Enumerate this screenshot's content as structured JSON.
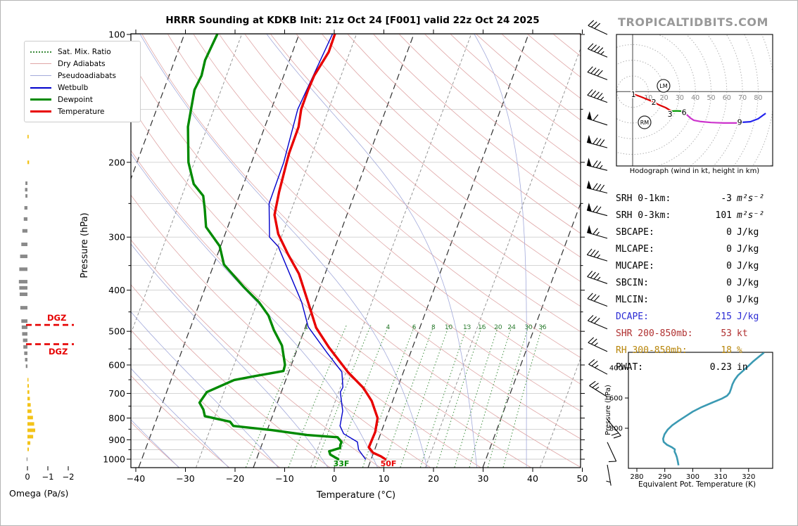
{
  "chart_data": {
    "type": "skewt-sounding",
    "title": "HRRR Sounding at KDKB Init: 21z Oct 24 [F001] valid 22z Oct 24 2025",
    "watermark": "TROPICALTIDBITS.COM",
    "legend": {
      "items": [
        {
          "label": "Sat. Mix. Ratio",
          "style": "mixratio"
        },
        {
          "label": "Dry Adiabats",
          "style": "dryadiabat"
        },
        {
          "label": "Pseudoadiabats",
          "style": "pseudoadiabat"
        },
        {
          "label": "Wetbulb",
          "style": "wetbulb"
        },
        {
          "label": "Dewpoint",
          "style": "dewpoint"
        },
        {
          "label": "Temperature",
          "style": "temperature"
        }
      ]
    },
    "skewt": {
      "xlabel": "Temperature (°C)",
      "ylabel": "Pressure (hPa)",
      "x_ticks": [
        -40,
        -30,
        -20,
        -10,
        0,
        10,
        20,
        30,
        40,
        50
      ],
      "p_ticks": [
        100,
        200,
        300,
        400,
        500,
        600,
        700,
        800,
        900,
        1000
      ],
      "p_range": [
        100,
        1047
      ],
      "dgz": {
        "label": "DGZ",
        "top_p": 483,
        "bottom_p": 536
      },
      "surface_labels": [
        {
          "text": "33F",
          "color": "#008a00"
        },
        {
          "text": "50F",
          "color": "#e80000"
        }
      ],
      "mixratio_lines": [
        1,
        2,
        3,
        4,
        6,
        8,
        10,
        13,
        16,
        20,
        24,
        30,
        36
      ],
      "mixratio_labels": [
        1,
        4,
        6,
        8,
        10,
        13,
        16,
        20,
        24,
        30,
        36
      ],
      "temperature": [
        [
          100,
          -63.3
        ],
        [
          110,
          -61.9
        ],
        [
          125,
          -61.3
        ],
        [
          135,
          -60.4
        ],
        [
          150,
          -58.9
        ],
        [
          165,
          -56.8
        ],
        [
          190,
          -54.8
        ],
        [
          200,
          -53.9
        ],
        [
          235,
          -51.0
        ],
        [
          266,
          -48.5
        ],
        [
          295,
          -44.9
        ],
        [
          330,
          -39.8
        ],
        [
          366,
          -34.8
        ],
        [
          427,
          -28.7
        ],
        [
          490,
          -23.3
        ],
        [
          545,
          -17.8
        ],
        [
          623,
          -10.3
        ],
        [
          677,
          -5.0
        ],
        [
          695,
          -3.6
        ],
        [
          730,
          -1.1
        ],
        [
          800,
          2.6
        ],
        [
          863,
          4.2
        ],
        [
          900,
          4.7
        ],
        [
          938,
          5.2
        ],
        [
          965,
          6.8
        ],
        [
          985,
          9.0
        ],
        [
          1000,
          10.3
        ]
      ],
      "dewpoint": [
        [
          100,
          -87
        ],
        [
          115,
          -85.6
        ],
        [
          125,
          -84
        ],
        [
          135,
          -83.3
        ],
        [
          150,
          -81.1
        ],
        [
          165,
          -79.1
        ],
        [
          200,
          -73.7
        ],
        [
          225,
          -69.4
        ],
        [
          240,
          -65.7
        ],
        [
          258,
          -63.4
        ],
        [
          284,
          -60.5
        ],
        [
          315,
          -54.9
        ],
        [
          348,
          -51.3
        ],
        [
          394,
          -43.8
        ],
        [
          427,
          -38.6
        ],
        [
          459,
          -34.7
        ],
        [
          497,
          -31.4
        ],
        [
          540,
          -27.5
        ],
        [
          600,
          -24.0
        ],
        [
          620,
          -23.4
        ],
        [
          637,
          -28.3
        ],
        [
          651,
          -32.0
        ],
        [
          695,
          -35.7
        ],
        [
          736,
          -35.6
        ],
        [
          764,
          -33.8
        ],
        [
          792,
          -32.5
        ],
        [
          816,
          -26.6
        ],
        [
          835,
          -25.3
        ],
        [
          854,
          -17.0
        ],
        [
          877,
          -9.1
        ],
        [
          888,
          -2.6
        ],
        [
          911,
          -1.1
        ],
        [
          926,
          -0.9
        ],
        [
          941,
          -0.5
        ],
        [
          958,
          -2.2
        ],
        [
          975,
          -1.5
        ],
        [
          1000,
          0.8
        ]
      ],
      "wetbulb": [
        [
          100,
          -63.8
        ],
        [
          150,
          -59.6
        ],
        [
          200,
          -54.5
        ],
        [
          250,
          -51.3
        ],
        [
          300,
          -46.2
        ],
        [
          316,
          -43.0
        ],
        [
          370,
          -36.2
        ],
        [
          427,
          -30.0
        ],
        [
          488,
          -25.0
        ],
        [
          560,
          -17.5
        ],
        [
          623,
          -11.5
        ],
        [
          677,
          -9.0
        ],
        [
          695,
          -8.8
        ],
        [
          770,
          -5.5
        ],
        [
          835,
          -3.8
        ],
        [
          871,
          -1.9
        ],
        [
          911,
          2.1
        ],
        [
          950,
          3.5
        ],
        [
          1000,
          6.3
        ]
      ]
    },
    "omega": {
      "xlabel": "Omega (Pa/s)",
      "ticks": [
        0,
        -1,
        -2
      ],
      "bars": [
        [
          174,
          -0.06
        ],
        [
          200,
          -0.08
        ],
        [
          224,
          0.1
        ],
        [
          232,
          0.12
        ],
        [
          240,
          0.1
        ],
        [
          256,
          0.15
        ],
        [
          272,
          0.18
        ],
        [
          290,
          0.25
        ],
        [
          312,
          0.3
        ],
        [
          333,
          0.36
        ],
        [
          357,
          0.4
        ],
        [
          382,
          0.42
        ],
        [
          395,
          0.4
        ],
        [
          409,
          0.38
        ],
        [
          440,
          0.35
        ],
        [
          473,
          0.3
        ],
        [
          489,
          0.28
        ],
        [
          507,
          0.26
        ],
        [
          525,
          0.22
        ],
        [
          544,
          0.2
        ],
        [
          563,
          0.16
        ],
        [
          583,
          0.12
        ],
        [
          604,
          0.08
        ],
        [
          650,
          -0.05
        ],
        [
          672,
          -0.07
        ],
        [
          695,
          -0.09
        ],
        [
          720,
          -0.12
        ],
        [
          745,
          -0.16
        ],
        [
          771,
          -0.2
        ],
        [
          798,
          -0.27
        ],
        [
          826,
          -0.33
        ],
        [
          855,
          -0.38
        ],
        [
          885,
          -0.28
        ],
        [
          916,
          -0.14
        ],
        [
          948,
          -0.07
        ],
        [
          1000,
          0.04
        ]
      ]
    },
    "wind_barbs": {
      "speeds_kt": [
        30,
        45,
        40,
        45,
        60,
        80,
        75,
        80,
        70,
        65,
        35,
        35,
        30,
        30,
        25,
        25,
        25,
        20,
        10,
        5
      ],
      "dirs_deg": [
        295,
        293,
        291,
        290,
        288,
        285,
        284,
        284,
        285,
        286,
        287,
        289,
        291,
        293,
        295,
        298,
        302,
        140,
        155,
        170
      ]
    },
    "hodograph": {
      "caption": "Hodograph (wind in kt, height in km)",
      "ring_step_kt": 10,
      "ring_labels": [
        10,
        20,
        30,
        40,
        50,
        60,
        70,
        80
      ],
      "segments": {
        "red": [
          [
            0.9,
            -1.7
          ],
          [
            5,
            -3.2
          ],
          [
            9,
            -4.8
          ],
          [
            13,
            -6.5
          ],
          [
            17,
            -8.5
          ],
          [
            21,
            -10.2
          ],
          [
            24.7,
            -12.4
          ]
        ],
        "green": [
          [
            24.7,
            -12.4
          ],
          [
            28,
            -12.3
          ],
          [
            30.9,
            -12.4
          ],
          [
            32.3,
            -12.9
          ]
        ],
        "magenta": [
          [
            32.3,
            -12.9
          ],
          [
            34.5,
            -14.7
          ],
          [
            37,
            -17
          ],
          [
            39,
            -18.3
          ],
          [
            43.5,
            -19.1
          ],
          [
            50,
            -19.7
          ],
          [
            58,
            -20
          ],
          [
            65.9,
            -20
          ],
          [
            69,
            -19.6
          ]
        ],
        "blue": [
          [
            69,
            -19.6
          ],
          [
            75,
            -19.2
          ],
          [
            80,
            -17.3
          ],
          [
            84.8,
            -13.8
          ]
        ]
      },
      "height_labels": [
        {
          "text": "1",
          "u": 0.5,
          "v": -1.7
        },
        {
          "text": "2",
          "u": 13.5,
          "v": -6.6
        },
        {
          "text": "3",
          "u": 23.8,
          "v": -14.3
        },
        {
          "text": "6",
          "u": 32.8,
          "v": -13.0
        },
        {
          "text": "9",
          "u": 68.2,
          "v": -19.3
        }
      ],
      "storm_motion": [
        {
          "text": "LM",
          "u": 19.7,
          "v": 3.7
        },
        {
          "text": "RM",
          "u": 7.6,
          "v": -19.6
        }
      ]
    },
    "stats": {
      "rows": [
        {
          "label": "SRH 0-1km:",
          "value": "-3",
          "unit": "m²s⁻²",
          "color": "#000000"
        },
        {
          "label": "SRH 0-3km:",
          "value": "101",
          "unit": "m²s⁻²",
          "color": "#000000"
        },
        {
          "label": "SBCAPE:",
          "value": "0",
          "unit": "J/kg",
          "color": "#000000"
        },
        {
          "label": "MLCAPE:",
          "value": "0",
          "unit": "J/kg",
          "color": "#000000"
        },
        {
          "label": "MUCAPE:",
          "value": "0",
          "unit": "J/kg",
          "color": "#000000"
        },
        {
          "label": "SBCIN:",
          "value": "0",
          "unit": "J/kg",
          "color": "#000000"
        },
        {
          "label": "MLCIN:",
          "value": "0",
          "unit": "J/kg",
          "color": "#000000"
        },
        {
          "label": "DCAPE:",
          "value": "215",
          "unit": "J/kg",
          "color": "#2a2ad4"
        },
        {
          "label": "SHR 200-850mb:",
          "value": "53",
          "unit": "kt",
          "color": "#b03030"
        },
        {
          "label": "RH 300-850mb:",
          "value": "18",
          "unit": "%",
          "color": "#b8860b"
        },
        {
          "label": "PWAT:",
          "value": "0.23",
          "unit": "in",
          "color": "#000000"
        }
      ]
    },
    "ept": {
      "xlabel": "Equivalent Pot. Temperature (K)",
      "ylabel": "Pressure (hPa)",
      "x_ticks": [
        280,
        290,
        300,
        310,
        320
      ],
      "y_ticks": [
        400,
        600,
        800
      ],
      "trace": [
        [
          300,
          325.5
        ],
        [
          330,
          323.5
        ],
        [
          360,
          321.5
        ],
        [
          390,
          319.8
        ],
        [
          420,
          318.0
        ],
        [
          450,
          316.2
        ],
        [
          480,
          315.0
        ],
        [
          510,
          314.2
        ],
        [
          540,
          313.7
        ],
        [
          565,
          313.2
        ],
        [
          585,
          312.3
        ],
        [
          605,
          310.3
        ],
        [
          630,
          307.0
        ],
        [
          660,
          303.2
        ],
        [
          690,
          300.0
        ],
        [
          720,
          297.5
        ],
        [
          750,
          295.0
        ],
        [
          780,
          292.7
        ],
        [
          810,
          291.0
        ],
        [
          840,
          289.9
        ],
        [
          870,
          289.4
        ],
        [
          890,
          289.6
        ],
        [
          910,
          290.8
        ],
        [
          925,
          292.5
        ],
        [
          940,
          293.6
        ],
        [
          955,
          293.5
        ],
        [
          970,
          293.9
        ],
        [
          990,
          294.3
        ],
        [
          1015,
          294.6
        ],
        [
          1045,
          294.9
        ]
      ]
    },
    "colors": {
      "temperature": "#e80000",
      "dewpoint": "#008a00",
      "wetbulb": "#0000cc",
      "dry_adiabat": "#dfa6a6",
      "pseudoadiabat": "#a3aadb",
      "mix_ratio": "#3c8c3c",
      "grid": "#cfcfcf",
      "dash_light": "#8a8a8a",
      "dash_dark": "#2f2f2f",
      "omega_down": "#8a8a8a",
      "omega_up": "#f3c318",
      "dgz": "#e60000",
      "ept_trace": "#3b9ab3",
      "hodo_red": "#dd0000",
      "hodo_green": "#009900",
      "hodo_magenta": "#cc33cc",
      "hodo_blue": "#2222ee"
    }
  }
}
